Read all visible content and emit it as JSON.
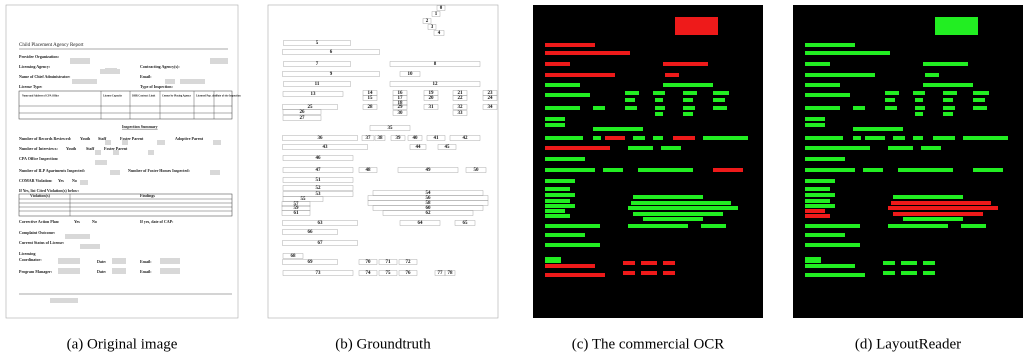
{
  "captions": [
    "(a) Original image",
    "(b) Groundtruth",
    "(c) The commercial OCR",
    "(d) LayoutReader"
  ],
  "original": {
    "title": "Child Placement Agency Report",
    "labels": [
      "Provider Organization:",
      "Licensing Agency:",
      "Contracting Agency(s):",
      "Name of Chief Administrator:",
      "Email:",
      "License Type:",
      "Type of Inspection:",
      "Name and Address of CPA Office",
      "License Capacity",
      "DHR Contract Limit",
      "Census by Placing Agency",
      "Licensed Pop. date",
      "Date of site Inspection",
      "Inspection Summary",
      "Number of Records Reviewed:",
      "Youth",
      "Staff",
      "Foster Parent",
      "Adoptive Parent",
      "Number of Interviews:",
      "Youth",
      "Staff",
      "Foster Parent",
      "CPA Office Inspection:",
      "Number of ILP Apartments Inspected:",
      "Number of Foster Homes Inspected:",
      "COMAR Violation:",
      "Yes",
      "No",
      "If Yes, list Cited Violation(s) below:",
      "Violation(s)",
      "Findings",
      "Corrective Action Plan:",
      "Yes",
      "No",
      "If yes, date of CAP:",
      "Complaint Outcome:",
      "Current Status of License:",
      "Licensing",
      "Coordinator:",
      "Date:",
      "Email:",
      "Program Manager:",
      "Date:",
      "Email:"
    ]
  },
  "groundtruth": {
    "labels": [
      "0",
      "1",
      "2",
      "3",
      "4",
      "5",
      "6",
      "7",
      "8",
      "9",
      "10",
      "11",
      "12",
      "13",
      "14",
      "15",
      "16",
      "17",
      "18",
      "19",
      "20",
      "21",
      "22",
      "23",
      "24",
      "25",
      "26",
      "27",
      "28",
      "29",
      "30",
      "31",
      "32",
      "33",
      "34",
      "35",
      "36",
      "37",
      "38",
      "39",
      "40",
      "41",
      "42",
      "43",
      "44",
      "45",
      "46",
      "47",
      "48",
      "49",
      "50",
      "51",
      "52",
      "53",
      "54",
      "55",
      "56",
      "57",
      "58",
      "59",
      "60",
      "61",
      "62",
      "63",
      "64",
      "65",
      "66",
      "67",
      "68",
      "69",
      "70",
      "71",
      "72",
      "73",
      "74",
      "75",
      "76",
      "77",
      "78"
    ]
  }
}
